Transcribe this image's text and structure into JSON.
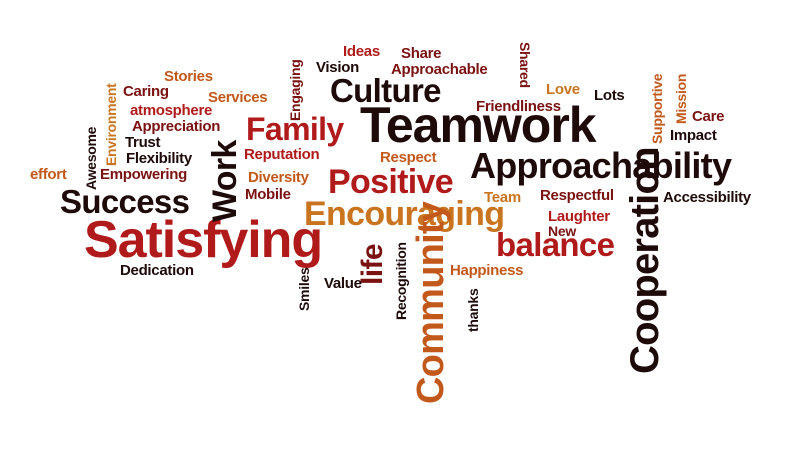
{
  "palette": {
    "dark": "#1f0a0a",
    "maroon": "#7a1212",
    "red": "#b01a1a",
    "orange": "#c2591a",
    "gold": "#c9741f"
  },
  "words": {
    "teamwork": "Teamwork",
    "satisfying": "Satisfying",
    "approachability": "Approachability",
    "encouraging": "Encouraging",
    "cooperation": "Cooperation",
    "community": "Community",
    "success": "Success",
    "positive": "Positive",
    "culture": "Culture",
    "family": "Family",
    "balance": "balance",
    "work": "Work",
    "life": "life",
    "ideas": "Ideas",
    "share": "Share",
    "vision": "Vision",
    "approachable": "Approachable",
    "shared": "Shared",
    "love": "Love",
    "lots": "Lots",
    "friendliness": "Friendliness",
    "supportive": "Supportive",
    "mission": "Mission",
    "care": "Care",
    "impact": "Impact",
    "accessibility": "Accessibility",
    "respectful": "Respectful",
    "team": "Team",
    "laughter": "Laughter",
    "new": "New",
    "respect": "Respect",
    "reputation": "Reputation",
    "diversity": "Diversity",
    "mobile": "Mobile",
    "engaging": "Engaging",
    "stories": "Stories",
    "caring": "Caring",
    "services": "Services",
    "atmosphere": "atmosphere",
    "appreciation": "Appreciation",
    "environment": "Environment",
    "awesome": "Awesome",
    "trust": "Trust",
    "flexibility": "Flexibility",
    "effort": "effort",
    "empowering": "Empowering",
    "dedication": "Dedication",
    "smiles": "Smiles",
    "value": "Value",
    "recognition": "Recognition",
    "thanks": "thanks",
    "happiness": "Happiness"
  }
}
